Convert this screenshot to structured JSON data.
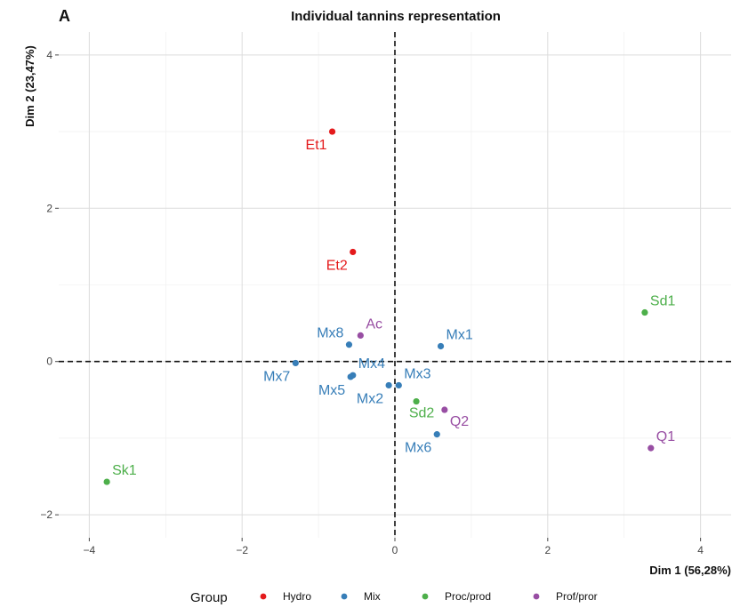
{
  "chart_data": {
    "type": "scatter",
    "panel_letter": "A",
    "title": "Individual tannins representation",
    "xlabel": "Dim 1 (56,28%)",
    "ylabel": "Dim 2 (23,47%)",
    "xlim": [
      -4.4,
      4.4
    ],
    "ylim": [
      -2.3,
      4.3
    ],
    "x_ticks": [
      -4,
      -2,
      0,
      2,
      4
    ],
    "y_ticks": [
      -2,
      0,
      2,
      4
    ],
    "x_tick_labels": [
      "-4",
      "-2",
      "0",
      "2",
      "4"
    ],
    "y_tick_labels": [
      "-2",
      "0",
      "2",
      "4"
    ],
    "grid": true,
    "reference_lines": {
      "x": 0,
      "y": 0,
      "style": "dashed"
    },
    "legend": {
      "title": "Group",
      "placement": "bottom",
      "entries": [
        {
          "name": "Hydro",
          "color": "#e41a1c"
        },
        {
          "name": "Mix",
          "color": "#377eb8"
        },
        {
          "name": "Proc/prod",
          "color": "#4daf4a"
        },
        {
          "name": "Prof/pror",
          "color": "#984ea3"
        }
      ]
    },
    "points": [
      {
        "label": "Et1",
        "group": "Hydro",
        "x": -0.82,
        "y": 3.0,
        "label_pos": "bottom-left"
      },
      {
        "label": "Et2",
        "group": "Hydro",
        "x": -0.55,
        "y": 1.43,
        "label_pos": "bottom-left"
      },
      {
        "label": "Ac",
        "group": "Prof/pror",
        "x": -0.45,
        "y": 0.34,
        "label_pos": "top-right"
      },
      {
        "label": "Mx8",
        "group": "Mix",
        "x": -0.6,
        "y": 0.22,
        "label_pos": "top-left"
      },
      {
        "label": "Mx1",
        "group": "Mix",
        "x": 0.6,
        "y": 0.2,
        "label_pos": "top-right"
      },
      {
        "label": "Mx7",
        "group": "Mix",
        "x": -1.3,
        "y": -0.02,
        "label_pos": "bottom-left"
      },
      {
        "label": "Mx4",
        "group": "Mix",
        "x": -0.55,
        "y": -0.18,
        "label_pos": "top-right"
      },
      {
        "label": "Mx5",
        "group": "Mix",
        "x": -0.58,
        "y": -0.2,
        "label_pos": "bottom-left"
      },
      {
        "label": "Mx3",
        "group": "Mix",
        "x": 0.05,
        "y": -0.31,
        "label_pos": "top-right"
      },
      {
        "label": "Mx2",
        "group": "Mix",
        "x": -0.08,
        "y": -0.31,
        "label_pos": "bottom-left"
      },
      {
        "label": "Sd2",
        "group": "Proc/prod",
        "x": 0.28,
        "y": -0.52,
        "label_pos": "bottom"
      },
      {
        "label": "Q2",
        "group": "Prof/pror",
        "x": 0.65,
        "y": -0.63,
        "label_pos": "bottom-right"
      },
      {
        "label": "Mx6",
        "group": "Mix",
        "x": 0.55,
        "y": -0.95,
        "label_pos": "bottom-left"
      },
      {
        "label": "Sd1",
        "group": "Proc/prod",
        "x": 3.27,
        "y": 0.64,
        "label_pos": "top-right"
      },
      {
        "label": "Q1",
        "group": "Prof/pror",
        "x": 3.35,
        "y": -1.13,
        "label_pos": "top-right"
      },
      {
        "label": "Sk1",
        "group": "Proc/prod",
        "x": -3.77,
        "y": -1.57,
        "label_pos": "top-right"
      }
    ]
  }
}
